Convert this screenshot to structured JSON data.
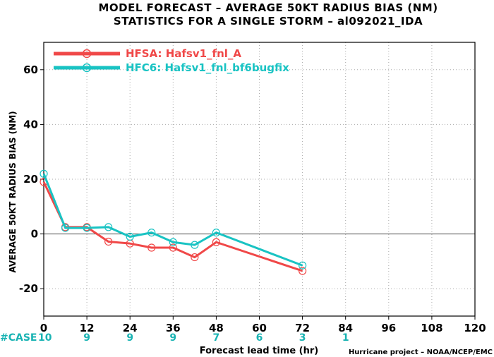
{
  "chart_data": {
    "type": "line",
    "title": "MODEL FORECAST – AVERAGE 50KT RADIUS BIAS (NM)",
    "subtitle": "STATISTICS FOR A SINGLE STORM – al092021_IDA",
    "xlabel": "Forecast lead time (hr)",
    "ylabel": "AVERAGE 50KT RADIUS BIAS (NM)",
    "xlim": [
      0,
      120
    ],
    "ylim": [
      -30,
      70
    ],
    "x_ticks": [
      0,
      12,
      24,
      36,
      48,
      60,
      72,
      84,
      96,
      108,
      120
    ],
    "y_ticks": [
      -20,
      0,
      20,
      40,
      60
    ],
    "grid": true,
    "legend_position": "top-left",
    "series": [
      {
        "name": "HFSA: Hafsv1_fnl_A",
        "color": "#f04848",
        "x": [
          0,
          6,
          12,
          18,
          24,
          30,
          36,
          42,
          48,
          72
        ],
        "y": [
          19,
          2.5,
          2.5,
          -2.8,
          -3.5,
          -5,
          -5,
          -8.5,
          -3,
          -13.5
        ]
      },
      {
        "name": "HFC6: Hafsv1_fnl_bf6bugfix",
        "color": "#19c3c3",
        "x": [
          0,
          6,
          12,
          18,
          24,
          30,
          36,
          42,
          48,
          72
        ],
        "y": [
          22,
          2.2,
          2.2,
          2.5,
          -1,
          0.5,
          -3,
          -4,
          0.5,
          -11.5
        ]
      }
    ],
    "case_label": "#CASE",
    "case_counts": [
      {
        "x": 0,
        "n": "10"
      },
      {
        "x": 12,
        "n": "9"
      },
      {
        "x": 24,
        "n": "9"
      },
      {
        "x": 36,
        "n": "9"
      },
      {
        "x": 48,
        "n": "7"
      },
      {
        "x": 60,
        "n": "6"
      },
      {
        "x": 72,
        "n": "3"
      },
      {
        "x": 84,
        "n": "1"
      }
    ],
    "credit": "Hurricane project – NOAA/NCEP/EMC"
  }
}
